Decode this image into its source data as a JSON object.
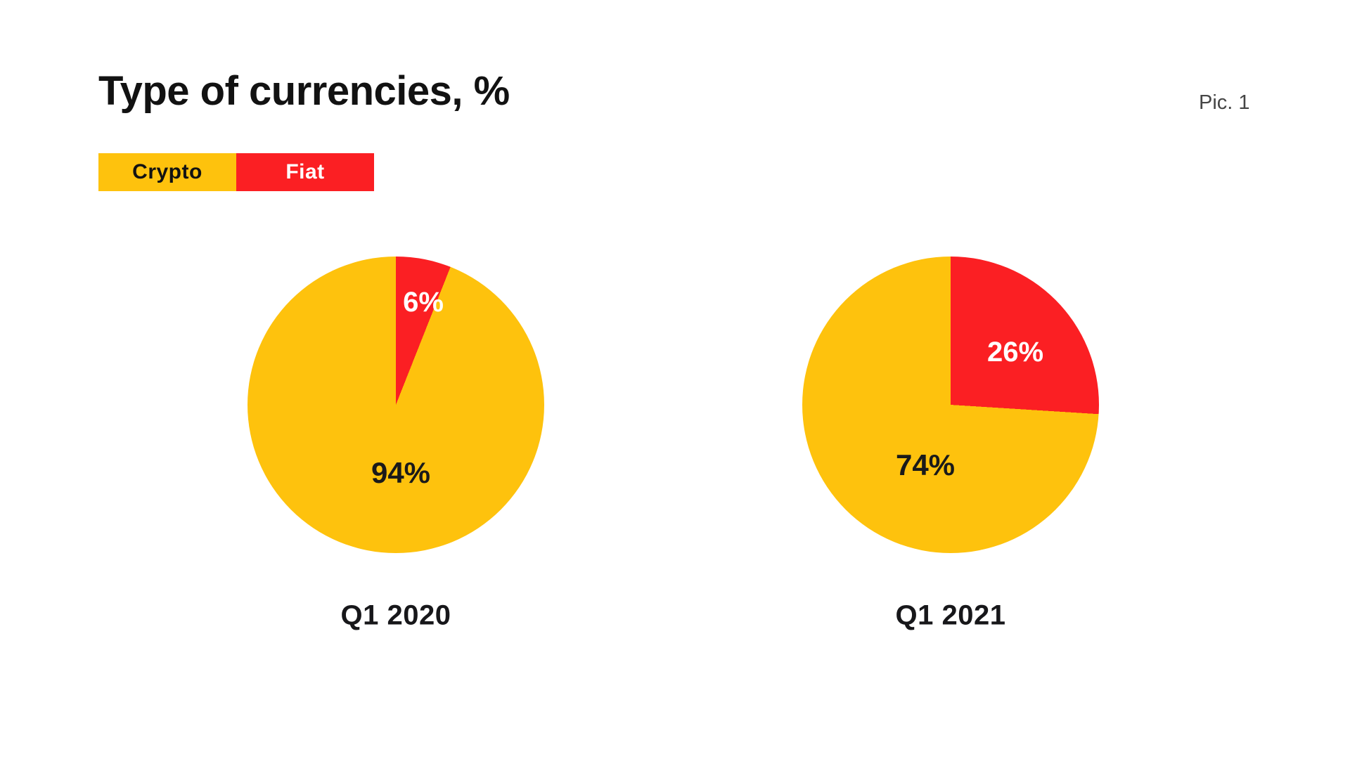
{
  "page": {
    "title": "Type of currencies, %",
    "figure_label": "Pic. 1",
    "background_color": "#ffffff",
    "title_color": "#121212",
    "figure_label_color": "#454545"
  },
  "colors": {
    "crypto_yellow": "#FEC20D",
    "fiat_red": "#FB1F23"
  },
  "legend": {
    "items": [
      {
        "label": "Crypto",
        "color": "#FEC20D",
        "text_color": "#121212"
      },
      {
        "label": "Fiat",
        "color": "#FB1F23",
        "text_color": "#ffffff"
      }
    ]
  },
  "chart_data": [
    {
      "type": "pie",
      "title": "Q1 2020",
      "start_angle_deg": 0,
      "direction": "clockwise",
      "slices": [
        {
          "name": "Fiat",
          "value": 6,
          "label": "6%",
          "color": "#FB1F23",
          "label_color": "#ffffff"
        },
        {
          "name": "Crypto",
          "value": 94,
          "label": "94%",
          "color": "#FEC20D",
          "label_color": "#1a1a1a"
        }
      ]
    },
    {
      "type": "pie",
      "title": "Q1 2021",
      "start_angle_deg": 0,
      "direction": "clockwise",
      "slices": [
        {
          "name": "Fiat",
          "value": 26,
          "label": "26%",
          "color": "#FB1F23",
          "label_color": "#ffffff"
        },
        {
          "name": "Crypto",
          "value": 74,
          "label": "74%",
          "color": "#FEC20D",
          "label_color": "#1a1a1a"
        }
      ]
    }
  ]
}
